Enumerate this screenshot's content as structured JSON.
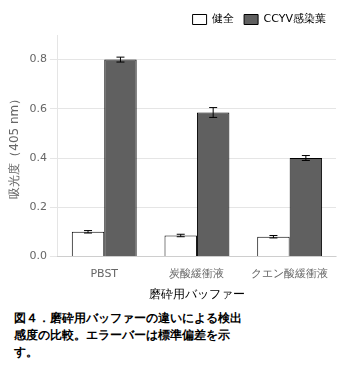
{
  "chart_data": {
    "type": "bar",
    "categories": [
      "PBST",
      "炭酸緩衝液",
      "クエン酸緩衝液"
    ],
    "series": [
      {
        "name": "健全",
        "color": "#ffffff",
        "values": [
          0.1,
          0.085,
          0.08
        ],
        "errors": [
          0.005,
          0.005,
          0.005
        ]
      },
      {
        "name": "CCYV感染葉",
        "color": "#606060",
        "values": [
          0.8,
          0.585,
          0.4
        ],
        "errors": [
          0.01,
          0.02,
          0.01
        ]
      }
    ],
    "ylabel": "吸光度（405 nm）",
    "xlabel": "磨砕用バッファー",
    "annotations": [
      "図４．磨砕用バッファーの違いによる検出",
      "感度の比較。エラーバーは標準偏差を示",
      "す。"
    ],
    "ylim": [
      0,
      0.9
    ],
    "yticks": [
      {
        "value": 0,
        "label": "0.0"
      },
      0.2,
      0.4,
      0.6,
      0.8
    ],
    "grid": true,
    "legend": "upper right"
  }
}
